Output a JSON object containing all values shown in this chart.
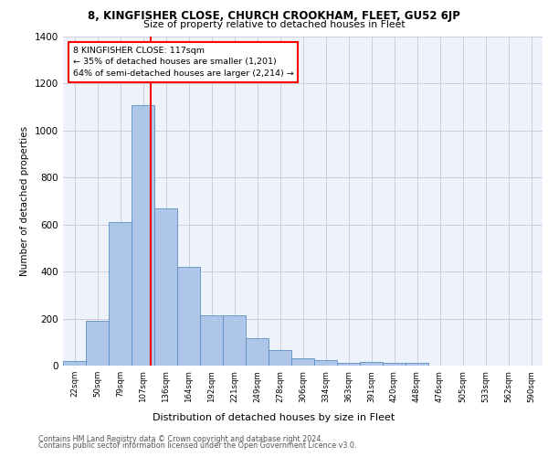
{
  "title1": "8, KINGFISHER CLOSE, CHURCH CROOKHAM, FLEET, GU52 6JP",
  "title2": "Size of property relative to detached houses in Fleet",
  "xlabel": "Distribution of detached houses by size in Fleet",
  "ylabel": "Number of detached properties",
  "footnote1": "Contains HM Land Registry data © Crown copyright and database right 2024.",
  "footnote2": "Contains public sector information licensed under the Open Government Licence v3.0.",
  "annotation_line1": "8 KINGFISHER CLOSE: 117sqm",
  "annotation_line2": "← 35% of detached houses are smaller (1,201)",
  "annotation_line3": "64% of semi-detached houses are larger (2,214) →",
  "bar_labels": [
    "22sqm",
    "50sqm",
    "79sqm",
    "107sqm",
    "136sqm",
    "164sqm",
    "192sqm",
    "221sqm",
    "249sqm",
    "278sqm",
    "306sqm",
    "334sqm",
    "363sqm",
    "391sqm",
    "420sqm",
    "448sqm",
    "476sqm",
    "505sqm",
    "533sqm",
    "562sqm",
    "590sqm"
  ],
  "bar_values": [
    20,
    190,
    610,
    1110,
    670,
    420,
    215,
    215,
    115,
    68,
    32,
    24,
    10,
    14,
    10,
    12,
    0,
    0,
    0,
    0,
    0
  ],
  "bar_color": "#aec6e8",
  "bar_edge_color": "#5a8fc2",
  "vline_color": "red",
  "grid_color": "#ccccdd",
  "bg_color": "#eef2fa",
  "ylim": [
    0,
    1400
  ],
  "yticks": [
    0,
    200,
    400,
    600,
    800,
    1000,
    1200,
    1400
  ]
}
